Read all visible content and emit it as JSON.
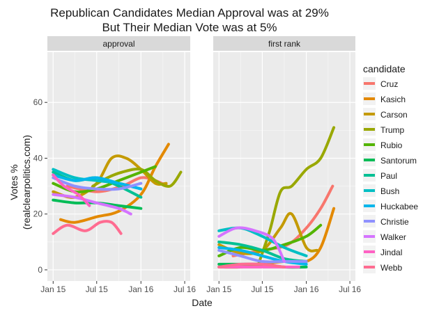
{
  "chart_data": {
    "type": "line",
    "title_lines": [
      "Republican Candidates Median Approval was at 29%",
      "But Their Median Vote was at 5%"
    ],
    "xlabel": "Date",
    "ylabel_lines": [
      "Votes %",
      "(realclearpolitics.com)"
    ],
    "x_ticks": [
      "Jan 15",
      "Jul 15",
      "Jan 16",
      "Jul 16"
    ],
    "x_tick_dates": [
      "2015-01-01",
      "2015-07-01",
      "2016-01-01",
      "2016-07-01"
    ],
    "xlim": [
      "2014-12-08",
      "2016-07-24"
    ],
    "y_ticks": [
      0,
      20,
      40,
      60
    ],
    "ylim": [
      -4,
      78
    ],
    "grid": true,
    "legend": {
      "title": "candidate",
      "position": "right"
    },
    "colors": {
      "panel_bg": "#ebebeb",
      "strip_bg": "#d9d9d9",
      "grid_major": "#ffffff",
      "text": "#1a1a1a",
      "axis_text": "#4d4d4d"
    },
    "candidates": [
      {
        "name": "Cruz",
        "color": "#F8766D"
      },
      {
        "name": "Kasich",
        "color": "#E38900"
      },
      {
        "name": "Carson",
        "color": "#C49A00"
      },
      {
        "name": "Trump",
        "color": "#99A800"
      },
      {
        "name": "Rubio",
        "color": "#53B400"
      },
      {
        "name": "Santorum",
        "color": "#00BC56"
      },
      {
        "name": "Paul",
        "color": "#00C094"
      },
      {
        "name": "Bush",
        "color": "#00BFC4"
      },
      {
        "name": "Huckabee",
        "color": "#00B6EB"
      },
      {
        "name": "Christie",
        "color": "#8F91FF"
      },
      {
        "name": "Walker",
        "color": "#D573FF"
      },
      {
        "name": "Jindal",
        "color": "#FF61C3"
      },
      {
        "name": "Webb",
        "color": "#FF6C91"
      }
    ],
    "panels": [
      {
        "strip": "approval",
        "series": [
          {
            "name": "Cruz",
            "points": [
              [
                "2015-03-01",
                30
              ],
              [
                "2015-07-01",
                28
              ],
              [
                "2015-10-15",
                30
              ],
              [
                "2016-01-01",
                33
              ],
              [
                "2016-03-01",
                32
              ],
              [
                "2016-04-20",
                30
              ]
            ]
          },
          {
            "name": "Kasich",
            "points": [
              [
                "2015-02-01",
                18
              ],
              [
                "2015-04-01",
                17
              ],
              [
                "2015-07-01",
                19
              ],
              [
                "2015-10-01",
                21
              ],
              [
                "2016-01-01",
                27
              ],
              [
                "2016-03-01",
                37
              ],
              [
                "2016-04-25",
                45
              ]
            ]
          },
          {
            "name": "Carson",
            "points": [
              [
                "2015-01-01",
                28
              ],
              [
                "2015-04-01",
                26
              ],
              [
                "2015-07-01",
                31
              ],
              [
                "2015-09-01",
                40
              ],
              [
                "2015-11-01",
                40
              ],
              [
                "2016-01-01",
                36
              ],
              [
                "2016-03-01",
                31
              ],
              [
                "2016-04-15",
                31
              ]
            ]
          },
          {
            "name": "Trump",
            "points": [
              [
                "2015-06-15",
                30
              ],
              [
                "2015-08-15",
                33
              ],
              [
                "2015-10-15",
                35
              ],
              [
                "2016-01-01",
                36
              ],
              [
                "2016-03-01",
                32
              ],
              [
                "2016-05-01",
                30
              ],
              [
                "2016-06-15",
                35
              ]
            ]
          },
          {
            "name": "Rubio",
            "points": [
              [
                "2015-01-01",
                31
              ],
              [
                "2015-04-01",
                28
              ],
              [
                "2015-07-01",
                29
              ],
              [
                "2015-10-01",
                32
              ],
              [
                "2016-01-01",
                35
              ],
              [
                "2016-03-01",
                37
              ]
            ]
          },
          {
            "name": "Santorum",
            "points": [
              [
                "2015-01-01",
                25
              ],
              [
                "2015-04-01",
                24
              ],
              [
                "2015-07-01",
                24
              ],
              [
                "2015-10-01",
                23
              ],
              [
                "2016-01-01",
                22
              ]
            ]
          },
          {
            "name": "Paul",
            "points": [
              [
                "2015-01-01",
                35
              ],
              [
                "2015-04-01",
                32
              ],
              [
                "2015-07-01",
                33
              ],
              [
                "2015-10-01",
                30
              ],
              [
                "2016-01-01",
                26
              ]
            ]
          },
          {
            "name": "Bush",
            "points": [
              [
                "2015-01-01",
                36
              ],
              [
                "2015-04-01",
                33
              ],
              [
                "2015-07-01",
                32
              ],
              [
                "2015-10-01",
                31
              ],
              [
                "2016-01-01",
                29
              ]
            ]
          },
          {
            "name": "Huckabee",
            "points": [
              [
                "2015-01-01",
                34
              ],
              [
                "2015-04-01",
                32
              ],
              [
                "2015-07-01",
                33
              ],
              [
                "2015-10-01",
                31
              ],
              [
                "2016-01-01",
                29
              ]
            ]
          },
          {
            "name": "Christie",
            "points": [
              [
                "2015-01-01",
                33
              ],
              [
                "2015-04-01",
                30
              ],
              [
                "2015-07-01",
                29
              ],
              [
                "2015-10-01",
                29
              ],
              [
                "2016-01-01",
                31
              ]
            ]
          },
          {
            "name": "Walker",
            "points": [
              [
                "2015-01-01",
                27
              ],
              [
                "2015-04-01",
                26
              ],
              [
                "2015-07-01",
                24
              ],
              [
                "2015-10-01",
                22
              ],
              [
                "2015-11-20",
                20
              ]
            ]
          },
          {
            "name": "Jindal",
            "points": [
              [
                "2015-01-01",
                34
              ],
              [
                "2015-02-15",
                30
              ],
              [
                "2015-04-15",
                27
              ],
              [
                "2015-06-01",
                23
              ]
            ]
          },
          {
            "name": "Webb",
            "points": [
              [
                "2015-01-01",
                13
              ],
              [
                "2015-03-01",
                16
              ],
              [
                "2015-05-15",
                14
              ],
              [
                "2015-07-15",
                17
              ],
              [
                "2015-09-01",
                17
              ],
              [
                "2015-10-10",
                13
              ]
            ]
          }
        ]
      },
      {
        "strip": "first rank",
        "series": [
          {
            "name": "Cruz",
            "points": [
              [
                "2015-03-01",
                5
              ],
              [
                "2015-07-01",
                7
              ],
              [
                "2015-10-15",
                9
              ],
              [
                "2016-01-01",
                15
              ],
              [
                "2016-03-01",
                22
              ],
              [
                "2016-04-20",
                30
              ]
            ]
          },
          {
            "name": "Kasich",
            "points": [
              [
                "2015-01-01",
                1
              ],
              [
                "2015-04-01",
                1
              ],
              [
                "2015-07-01",
                2
              ],
              [
                "2015-10-01",
                3
              ],
              [
                "2016-01-01",
                3
              ],
              [
                "2016-03-01",
                8
              ],
              [
                "2016-04-25",
                22
              ]
            ]
          },
          {
            "name": "Carson",
            "points": [
              [
                "2015-01-01",
                9
              ],
              [
                "2015-04-01",
                6
              ],
              [
                "2015-07-01",
                7
              ],
              [
                "2015-09-15",
                15
              ],
              [
                "2015-11-01",
                20
              ],
              [
                "2016-01-01",
                8
              ],
              [
                "2016-02-15",
                7
              ]
            ]
          },
          {
            "name": "Trump",
            "points": [
              [
                "2015-06-15",
                2
              ],
              [
                "2015-08-01",
                14
              ],
              [
                "2015-09-15",
                28
              ],
              [
                "2015-11-01",
                30
              ],
              [
                "2016-01-01",
                36
              ],
              [
                "2016-03-01",
                40
              ],
              [
                "2016-04-25",
                51
              ]
            ]
          },
          {
            "name": "Rubio",
            "points": [
              [
                "2015-01-01",
                5
              ],
              [
                "2015-04-01",
                8
              ],
              [
                "2015-07-01",
                7
              ],
              [
                "2015-10-01",
                9
              ],
              [
                "2016-01-01",
                12
              ],
              [
                "2016-03-01",
                16
              ]
            ]
          },
          {
            "name": "Santorum",
            "points": [
              [
                "2015-01-01",
                2
              ],
              [
                "2015-04-01",
                2
              ],
              [
                "2015-07-01",
                2
              ],
              [
                "2015-10-01",
                1
              ],
              [
                "2016-01-01",
                1
              ]
            ]
          },
          {
            "name": "Paul",
            "points": [
              [
                "2015-01-01",
                10
              ],
              [
                "2015-04-01",
                9
              ],
              [
                "2015-07-01",
                7
              ],
              [
                "2015-10-01",
                4
              ],
              [
                "2016-01-01",
                3
              ]
            ]
          },
          {
            "name": "Bush",
            "points": [
              [
                "2015-01-01",
                14
              ],
              [
                "2015-04-01",
                15
              ],
              [
                "2015-07-01",
                12
              ],
              [
                "2015-10-01",
                8
              ],
              [
                "2016-01-01",
                5
              ]
            ]
          },
          {
            "name": "Huckabee",
            "points": [
              [
                "2015-01-01",
                8
              ],
              [
                "2015-04-01",
                7
              ],
              [
                "2015-07-01",
                5
              ],
              [
                "2015-10-01",
                3
              ],
              [
                "2016-01-01",
                2
              ]
            ]
          },
          {
            "name": "Christie",
            "points": [
              [
                "2015-01-01",
                7
              ],
              [
                "2015-04-01",
                5
              ],
              [
                "2015-07-01",
                3
              ],
              [
                "2015-10-01",
                3
              ],
              [
                "2016-01-01",
                3
              ]
            ]
          },
          {
            "name": "Walker",
            "points": [
              [
                "2015-01-01",
                12
              ],
              [
                "2015-03-15",
                15
              ],
              [
                "2015-06-01",
                14
              ],
              [
                "2015-08-15",
                11
              ],
              [
                "2015-10-01",
                3
              ]
            ]
          },
          {
            "name": "Jindal",
            "points": [
              [
                "2015-01-01",
                1
              ],
              [
                "2015-04-01",
                1
              ],
              [
                "2015-07-01",
                1
              ],
              [
                "2015-10-01",
                1
              ],
              [
                "2015-12-01",
                1
              ]
            ]
          },
          {
            "name": "Webb",
            "points": [
              [
                "2015-01-01",
                1
              ],
              [
                "2015-04-01",
                2
              ],
              [
                "2015-07-01",
                2
              ],
              [
                "2015-10-01",
                1
              ]
            ]
          }
        ]
      }
    ]
  }
}
